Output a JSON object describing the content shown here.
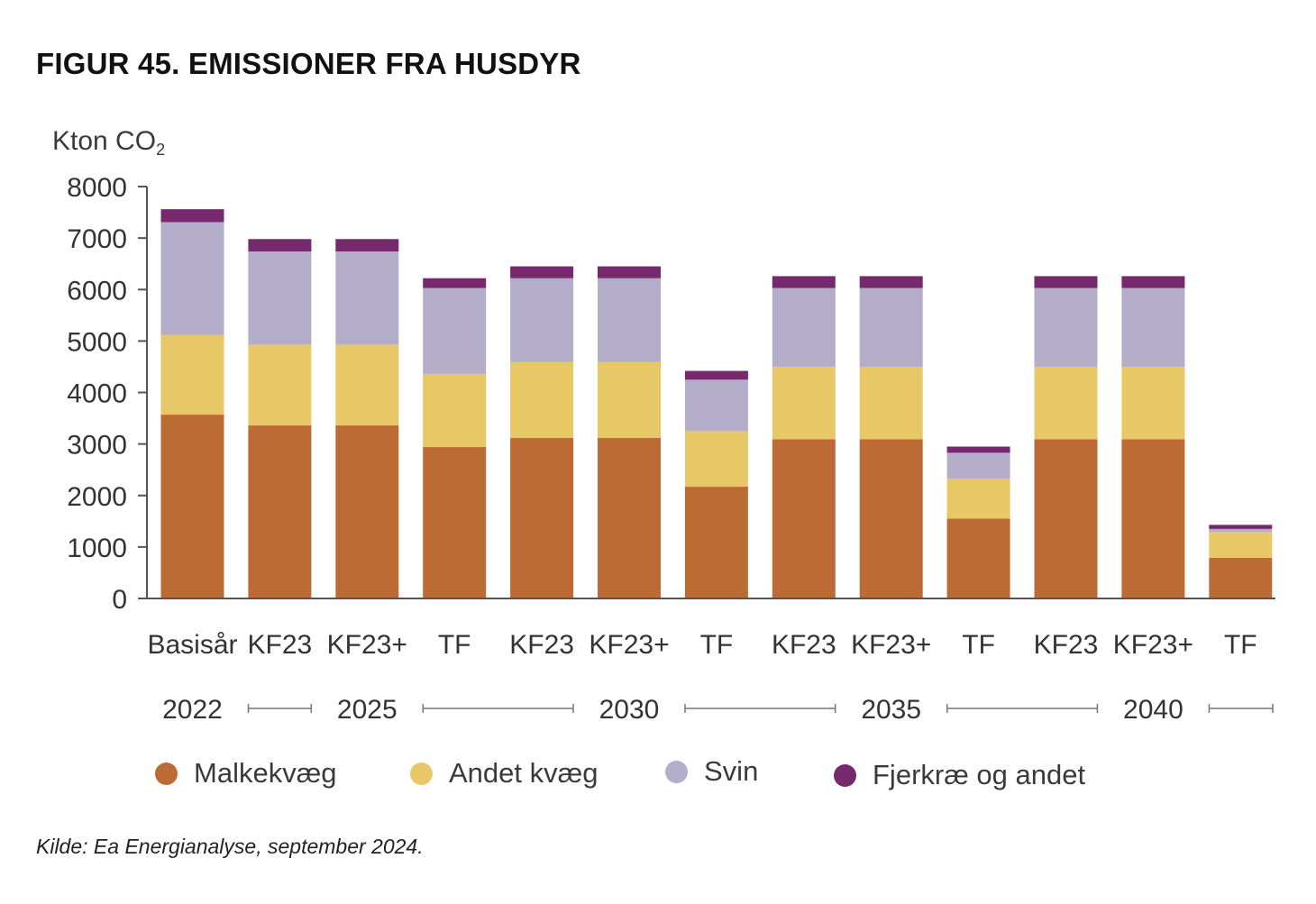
{
  "title": "FIGUR 45. EMISSIONER FRA HUSDYR",
  "unit_label": "Kton CO",
  "unit_subscript": "2",
  "source": "Kilde: Ea Energianalyse, september 2024.",
  "colors": {
    "malkekvaeg": "#bd6b35",
    "andet_kvaeg": "#e8c766",
    "svin": "#b3adca",
    "fjerkrae": "#76296c",
    "axis": "#555555",
    "text": "#333333"
  },
  "legend": [
    {
      "label": "Malkekvæg",
      "color": "#bd6b35"
    },
    {
      "label": "Andet kvæg",
      "color": "#e8c766"
    },
    {
      "label": "Svin",
      "color": "#b3adca"
    },
    {
      "label": "Fjerkræ og andet",
      "color": "#76296c"
    }
  ],
  "chart_data": {
    "type": "bar",
    "stacked": true,
    "ylabel": "Kton CO2",
    "ylim": [
      0,
      8000
    ],
    "yticks": [
      0,
      1000,
      2000,
      3000,
      4000,
      5000,
      6000,
      7000,
      8000
    ],
    "categories": [
      "Basisår",
      "KF23",
      "KF23+",
      "TF",
      "KF23",
      "KF23+",
      "TF",
      "KF23",
      "KF23+",
      "TF",
      "KF23",
      "KF23+",
      "TF"
    ],
    "groups": [
      {
        "label": "2022",
        "size": 1
      },
      {
        "label": "2025",
        "size": 3
      },
      {
        "label": "2030",
        "size": 3
      },
      {
        "label": "2035",
        "size": 3
      },
      {
        "label": "2040",
        "size": 3
      }
    ],
    "series": [
      {
        "name": "Malkekvæg",
        "values": [
          3570,
          3360,
          3360,
          2940,
          3120,
          3120,
          2170,
          3090,
          3090,
          1550,
          3090,
          3090,
          790
        ]
      },
      {
        "name": "Andet kvæg",
        "values": [
          1550,
          1570,
          1570,
          1420,
          1470,
          1470,
          1080,
          1410,
          1410,
          780,
          1410,
          1410,
          500
        ]
      },
      {
        "name": "Svin",
        "values": [
          2190,
          1810,
          1810,
          1670,
          1630,
          1630,
          1000,
          1530,
          1530,
          500,
          1530,
          1530,
          60
        ]
      },
      {
        "name": "Fjerkræ og andet",
        "values": [
          250,
          240,
          240,
          190,
          230,
          230,
          170,
          230,
          230,
          120,
          230,
          230,
          80
        ]
      }
    ],
    "legend_position": "bottom",
    "grid": false
  }
}
